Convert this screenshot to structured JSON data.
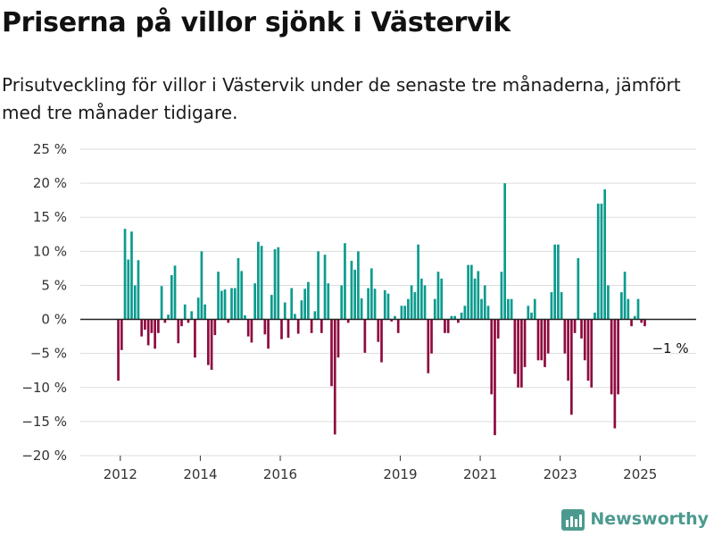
{
  "header": {
    "title": "Priserna på villor sjönk i Västervik",
    "subtitle": "Prisutveckling för villor i Västervik under de senaste tre månaderna, jämfört med tre månader tidigare."
  },
  "brand": {
    "name": "Newsworthy"
  },
  "colors": {
    "positive": "#0a9b8e",
    "negative": "#8e0a3f",
    "grid": "#dddddd",
    "zero": "#222222",
    "brand": "#4c9a8f"
  },
  "chart_data": {
    "type": "bar",
    "title": "Priserna på villor sjönk i Västervik",
    "subtitle": "Prisutveckling för villor i Västervik under de senaste tre månaderna, jämfört med tre månader tidigare.",
    "xlabel": "",
    "ylabel": "",
    "ylim": [
      -20,
      25
    ],
    "y_ticks": [
      -20,
      -15,
      -10,
      -5,
      0,
      5,
      10,
      15,
      20,
      25
    ],
    "y_tick_labels": [
      "−20 %",
      "−15 %",
      "−10 %",
      "−5 %",
      "0 %",
      "5 %",
      "10 %",
      "15 %",
      "20 %",
      "25 %"
    ],
    "x_ticks": [
      2012,
      2014,
      2016,
      2019,
      2021,
      2023,
      2025
    ],
    "x_tick_labels": [
      "2012",
      "2014",
      "2016",
      "2019",
      "2021",
      "2023",
      "2025"
    ],
    "x_range": [
      2011.0,
      2026.4
    ],
    "grid": true,
    "annotation": {
      "text": "−1 %",
      "x": 2025.25,
      "y": -1
    },
    "series": [
      {
        "name": "Prisutveckling",
        "x_start": 2011.95,
        "step": 0.08333,
        "values": [
          -9,
          -4.5,
          13.3,
          8.8,
          12.9,
          5,
          8.7,
          -2.5,
          -1.5,
          -3.8,
          -2,
          -4.3,
          -2,
          4.9,
          -0.5,
          0.7,
          6.5,
          7.9,
          -3.5,
          -1,
          2.2,
          -0.5,
          1.2,
          -5.6,
          3.2,
          10,
          2.2,
          -6.7,
          -7.4,
          -2.3,
          7,
          4.2,
          4.4,
          -0.5,
          4.6,
          4.6,
          9,
          7.1,
          0.6,
          -2.5,
          -3.4,
          5.3,
          11.4,
          10.8,
          -2.2,
          -4.3,
          3.6,
          10.3,
          10.6,
          -2.9,
          2.5,
          -2.7,
          4.6,
          0.8,
          -2.1,
          2.8,
          4.5,
          5.5,
          -2,
          1.2,
          10,
          -2,
          9.5,
          5.3,
          -9.8,
          -16.9,
          -5.6,
          5,
          11.2,
          -0.5,
          8.6,
          7.3,
          10,
          3.1,
          -4.9,
          4.6,
          7.5,
          4.5,
          -3.3,
          -6.3,
          4.3,
          3.8,
          -0.3,
          0.5,
          -2,
          2,
          2,
          3,
          5,
          4,
          11,
          6,
          5,
          -7.9,
          -5,
          3,
          7,
          6,
          -2,
          -2,
          0.5,
          0.5,
          -0.5,
          1,
          2,
          8,
          8,
          6,
          7.1,
          3,
          5,
          2,
          -11,
          -17,
          -2.8,
          7,
          20,
          3,
          3,
          -8,
          -10,
          -10,
          -7,
          2,
          1,
          3,
          -6,
          -6,
          -7,
          -5,
          4,
          11,
          11,
          4,
          -5,
          -9,
          -14,
          -2,
          9,
          -2.8,
          -6,
          -9,
          -10,
          1,
          17,
          17,
          19.1,
          5,
          -11,
          -16,
          -11,
          4,
          7,
          3,
          -1,
          0.5,
          3,
          -0.5,
          -1
        ]
      }
    ]
  }
}
